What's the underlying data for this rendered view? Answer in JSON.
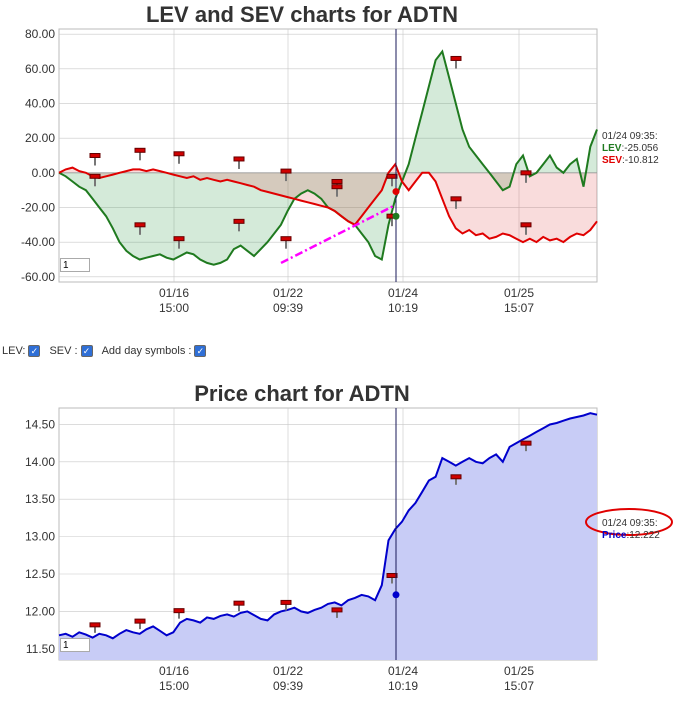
{
  "lev_chart": {
    "title": "LEV and SEV charts for ADTN",
    "y_ticks": [
      "80.00",
      "60.00",
      "40.00",
      "20.00",
      "0.00",
      "-20.00",
      "-40.00",
      "-60.00"
    ],
    "x_ticks": [
      {
        "date": "01/16",
        "time": "15:00"
      },
      {
        "date": "01/22",
        "time": "09:39"
      },
      {
        "date": "01/24",
        "time": "10:19"
      },
      {
        "date": "01/25",
        "time": "15:07"
      }
    ],
    "input_value": "1",
    "readout": {
      "timestamp": "01/24 09:35:",
      "lev_label": "LEV",
      "lev_value": ":-25.056",
      "sev_label": "SEV",
      "sev_value": ":-10.812"
    }
  },
  "controls": {
    "lev_label": "LEV:",
    "sev_label": "SEV :",
    "day_symbols_label": "Add day symbols :",
    "check_glyph": "✓"
  },
  "price_chart": {
    "title": "Price chart for ADTN",
    "y_ticks": [
      "14.50",
      "14.00",
      "13.50",
      "13.00",
      "12.50",
      "12.00",
      "11.50"
    ],
    "x_ticks": [
      {
        "date": "01/16",
        "time": "15:00"
      },
      {
        "date": "01/22",
        "time": "09:39"
      },
      {
        "date": "01/24",
        "time": "10:19"
      },
      {
        "date": "01/25",
        "time": "15:07"
      }
    ],
    "input_value": "1",
    "readout": {
      "timestamp": "01/24 09:35:",
      "price_label": "Price",
      "price_value": ":12.222"
    }
  },
  "chart_data": [
    {
      "type": "line",
      "title": "LEV and SEV charts for ADTN",
      "ylim": [
        -63,
        83
      ],
      "x_ticks": [
        "01/16 15:00",
        "01/22 09:39",
        "01/24 10:19",
        "01/25 15:07"
      ],
      "series": [
        {
          "name": "LEV",
          "color": "#1f7a1f",
          "values": [
            0,
            -2,
            -5,
            -8,
            -10,
            -15,
            -20,
            -25,
            -32,
            -40,
            -45,
            -48,
            -50,
            -49,
            -48,
            -47,
            -49,
            -50,
            -48,
            -46,
            -47,
            -50,
            -52,
            -53,
            -52,
            -50,
            -44,
            -42,
            -45,
            -48,
            -44,
            -40,
            -35,
            -30,
            -22,
            -15,
            -12,
            -10,
            -12,
            -15,
            -20,
            -22,
            -25,
            -28,
            -30,
            -35,
            -40,
            -48,
            -50,
            -30,
            -15,
            -5,
            5,
            20,
            35,
            50,
            65,
            70,
            55,
            40,
            25,
            15,
            10,
            5,
            0,
            -5,
            -10,
            -8,
            5,
            10,
            -2,
            0,
            5,
            10,
            3,
            0,
            5,
            8,
            -8,
            15,
            25
          ]
        },
        {
          "name": "SEV",
          "color": "#e00000",
          "values": [
            0,
            2,
            3,
            1,
            0,
            -2,
            -3,
            -2,
            -1,
            0,
            1,
            2,
            2,
            1,
            2,
            1,
            0,
            -1,
            -2,
            -3,
            -2,
            -4,
            -3,
            -4,
            -5,
            -4,
            -5,
            -6,
            -7,
            -8,
            -10,
            -11,
            -12,
            -13,
            -14,
            -15,
            -16,
            -17,
            -18,
            -19,
            -20,
            -22,
            -25,
            -28,
            -30,
            -25,
            -20,
            -15,
            -10,
            0,
            5,
            -5,
            -10,
            -5,
            0,
            0,
            -5,
            -15,
            -25,
            -32,
            -35,
            -33,
            -36,
            -35,
            -38,
            -37,
            -35,
            -36,
            -38,
            -40,
            -38,
            -40,
            -37,
            -39,
            -38,
            -40,
            -37,
            -35,
            -36,
            -33,
            -28
          ]
        }
      ],
      "highlight_point": {
        "series": "LEV",
        "value": -25.056
      },
      "highlight_point_sev": {
        "series": "SEV",
        "value": -10.812
      }
    },
    {
      "type": "area",
      "title": "Price chart for ADTN",
      "ylim": [
        11.35,
        14.72
      ],
      "x_ticks": [
        "01/16 15:00",
        "01/22 09:39",
        "01/24 10:19",
        "01/25 15:07"
      ],
      "series": [
        {
          "name": "Price",
          "color": "#0000cc",
          "fill": "#c8ccf6",
          "values": [
            11.68,
            11.7,
            11.66,
            11.72,
            11.69,
            11.65,
            11.7,
            11.68,
            11.64,
            11.7,
            11.75,
            11.72,
            11.7,
            11.76,
            11.8,
            11.74,
            11.68,
            11.72,
            11.85,
            11.9,
            11.88,
            11.85,
            11.92,
            11.9,
            11.94,
            11.96,
            11.93,
            11.98,
            12.0,
            11.95,
            11.9,
            11.88,
            11.96,
            12.0,
            12.02,
            12.05,
            12.0,
            11.98,
            12.02,
            12.05,
            12.1,
            12.12,
            12.08,
            12.15,
            12.18,
            12.22,
            12.2,
            12.15,
            12.35,
            12.95,
            13.1,
            13.2,
            13.35,
            13.45,
            13.6,
            13.75,
            13.8,
            14.05,
            14.0,
            13.95,
            14.0,
            14.05,
            14.0,
            13.98,
            14.05,
            14.1,
            14.0,
            14.2,
            14.25,
            14.3,
            14.35,
            14.4,
            14.45,
            14.5,
            14.52,
            14.55,
            14.58,
            14.6,
            14.62,
            14.65,
            14.63
          ]
        }
      ],
      "highlight_point": {
        "series": "Price",
        "value": 12.222
      }
    }
  ],
  "colors": {
    "lev": "#1f7a1f",
    "sev": "#e00000",
    "price": "#0000cc",
    "price_fill": "#c8ccf6",
    "grid": "#c8c8c8",
    "trend": "#ff00ff",
    "circle": "#e00000"
  }
}
